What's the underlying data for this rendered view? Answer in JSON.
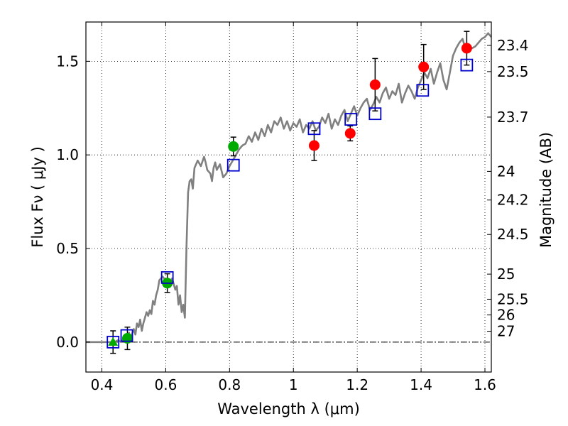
{
  "chart_data": {
    "type": "scatter",
    "title": "",
    "xlabel": "Wavelength  λ (μm)",
    "ylabel": "Flux  Fν  ( μJy )",
    "y2label": "Magnitude (AB)",
    "xlim": [
      0.35,
      1.62
    ],
    "ylim": [
      -0.16,
      1.71
    ],
    "grid": true,
    "x_ticks": [
      0.4,
      0.6,
      0.8,
      1.0,
      1.2,
      1.4,
      1.6
    ],
    "x_tick_labels": [
      "0.4",
      "0.6",
      "0.8",
      "1",
      "1.2",
      "1.4",
      "1.6"
    ],
    "y_ticks": [
      0.0,
      0.5,
      1.0,
      1.5
    ],
    "y_tick_labels": [
      "0.0",
      "0.5",
      "1.0",
      "1.5"
    ],
    "magnitude_ticks": [
      {
        "label": "23.4",
        "flux": 1.585
      },
      {
        "label": "23.5",
        "flux": 1.445
      },
      {
        "label": "23.7",
        "flux": 1.202
      },
      {
        "label": "24",
        "flux": 0.912
      },
      {
        "label": "24.2",
        "flux": 0.759
      },
      {
        "label": "24.5",
        "flux": 0.575
      },
      {
        "label": "25",
        "flux": 0.363
      },
      {
        "label": "25.5",
        "flux": 0.229
      },
      {
        "label": "26",
        "flux": 0.145
      },
      {
        "label": "27",
        "flux": 0.058
      }
    ],
    "colors": {
      "model": "#808080",
      "green": "#00aa00",
      "red": "#ff0000",
      "box": "#0000cc",
      "errorbar": "#000000",
      "grid": "#000000"
    },
    "series": [
      {
        "name": "Model SED",
        "type": "line",
        "x": [
          0.35,
          0.42,
          0.43,
          0.44,
          0.45,
          0.46,
          0.47,
          0.48,
          0.485,
          0.49,
          0.5,
          0.505,
          0.51,
          0.515,
          0.52,
          0.525,
          0.53,
          0.54,
          0.545,
          0.55,
          0.555,
          0.56,
          0.565,
          0.57,
          0.575,
          0.58,
          0.59,
          0.6,
          0.61,
          0.62,
          0.63,
          0.635,
          0.64,
          0.645,
          0.65,
          0.655,
          0.66,
          0.665,
          0.67,
          0.675,
          0.68,
          0.685,
          0.69,
          0.7,
          0.71,
          0.72,
          0.725,
          0.73,
          0.74,
          0.745,
          0.75,
          0.755,
          0.76,
          0.77,
          0.78,
          0.79,
          0.8,
          0.81,
          0.82,
          0.83,
          0.84,
          0.85,
          0.86,
          0.87,
          0.88,
          0.89,
          0.9,
          0.91,
          0.92,
          0.93,
          0.94,
          0.95,
          0.96,
          0.97,
          0.98,
          0.99,
          1.0,
          1.01,
          1.02,
          1.03,
          1.04,
          1.05,
          1.06,
          1.07,
          1.08,
          1.09,
          1.1,
          1.11,
          1.12,
          1.13,
          1.14,
          1.15,
          1.16,
          1.17,
          1.18,
          1.19,
          1.2,
          1.21,
          1.22,
          1.23,
          1.24,
          1.25,
          1.26,
          1.27,
          1.28,
          1.29,
          1.3,
          1.31,
          1.32,
          1.33,
          1.34,
          1.35,
          1.36,
          1.37,
          1.38,
          1.39,
          1.4,
          1.41,
          1.42,
          1.43,
          1.44,
          1.45,
          1.46,
          1.47,
          1.48,
          1.49,
          1.5,
          1.51,
          1.52,
          1.53,
          1.54,
          1.55,
          1.56,
          1.57,
          1.58,
          1.59,
          1.6,
          1.61,
          1.62
        ],
        "y": [
          0.0,
          0.0,
          0.0,
          0.0,
          0.01,
          0.0,
          0.02,
          0.03,
          0.05,
          0.02,
          0.07,
          0.04,
          0.1,
          0.08,
          0.12,
          0.06,
          0.1,
          0.16,
          0.14,
          0.17,
          0.15,
          0.22,
          0.2,
          0.25,
          0.28,
          0.33,
          0.35,
          0.33,
          0.31,
          0.34,
          0.28,
          0.3,
          0.2,
          0.25,
          0.16,
          0.2,
          0.13,
          0.5,
          0.8,
          0.86,
          0.87,
          0.82,
          0.93,
          0.97,
          0.94,
          0.99,
          0.96,
          0.92,
          0.9,
          0.86,
          0.93,
          0.96,
          0.92,
          0.95,
          0.88,
          0.9,
          0.94,
          0.97,
          1.0,
          1.03,
          1.05,
          1.06,
          1.1,
          1.07,
          1.12,
          1.08,
          1.14,
          1.1,
          1.16,
          1.12,
          1.18,
          1.16,
          1.2,
          1.14,
          1.18,
          1.13,
          1.17,
          1.15,
          1.19,
          1.12,
          1.16,
          1.14,
          1.18,
          1.13,
          1.15,
          1.2,
          1.17,
          1.22,
          1.14,
          1.19,
          1.16,
          1.21,
          1.24,
          1.18,
          1.22,
          1.26,
          1.21,
          1.25,
          1.28,
          1.3,
          1.24,
          1.27,
          1.31,
          1.28,
          1.33,
          1.36,
          1.3,
          1.34,
          1.32,
          1.38,
          1.28,
          1.33,
          1.37,
          1.34,
          1.3,
          1.36,
          1.4,
          1.44,
          1.41,
          1.46,
          1.38,
          1.44,
          1.49,
          1.4,
          1.35,
          1.44,
          1.53,
          1.57,
          1.6,
          1.62,
          1.56,
          1.58,
          1.57,
          1.58,
          1.6,
          1.62,
          1.63,
          1.65,
          1.63
        ]
      },
      {
        "name": "Green points",
        "type": "scatter",
        "marker": "circle",
        "x": [
          0.48,
          0.605,
          0.812
        ],
        "y": [
          0.02,
          0.315,
          1.045
        ],
        "yerr": [
          0.06,
          0.05,
          0.05
        ]
      },
      {
        "name": "Red points",
        "type": "scatter",
        "marker": "circle",
        "x": [
          1.065,
          1.178,
          1.256,
          1.408,
          1.543
        ],
        "y": [
          1.05,
          1.115,
          1.375,
          1.47,
          1.57
        ],
        "yerr": [
          0.08,
          0.04,
          0.14,
          0.12,
          0.09
        ]
      },
      {
        "name": "Upper limit",
        "type": "scatter",
        "marker": "triangle",
        "x": [
          0.435
        ],
        "y": [
          0.0
        ],
        "yerr": [
          0.06
        ]
      },
      {
        "name": "Model photometry",
        "type": "scatter",
        "marker": "square",
        "x": [
          0.435,
          0.478,
          0.605,
          0.812,
          1.065,
          1.18,
          1.256,
          1.405,
          1.543
        ],
        "y": [
          0.0,
          0.035,
          0.345,
          0.945,
          1.14,
          1.19,
          1.22,
          1.345,
          1.48
        ]
      }
    ]
  }
}
